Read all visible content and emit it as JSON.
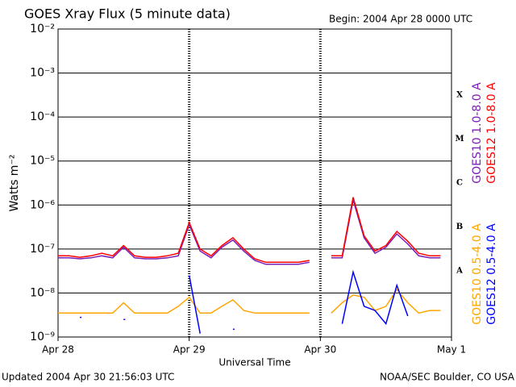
{
  "chart_data": {
    "type": "line",
    "title": "GOES Xray Flux (5 minute data)",
    "subtitle": "Begin:  2004 Apr 28 0000 UTC",
    "y_label": "Watts m⁻²",
    "x_label": "Universal Time",
    "footer_left": "Updated 2004 Apr 30 21:56:03 UTC",
    "footer_right": "NOAA/SEC Boulder, CO USA",
    "log_y": true,
    "grid": true,
    "xlim": [
      0,
      72
    ],
    "xticks": [
      {
        "value": 0,
        "label": "Apr 28"
      },
      {
        "value": 24,
        "label": "Apr 29"
      },
      {
        "value": 48,
        "label": "Apr 30"
      },
      {
        "value": 72,
        "label": "May 1"
      }
    ],
    "ylim": [
      1e-09,
      0.01
    ],
    "yticks": [
      {
        "value": 1e-09,
        "label": "10⁻⁹"
      },
      {
        "value": 1e-08,
        "label": "10⁻⁸"
      },
      {
        "value": 1e-07,
        "label": "10⁻⁷"
      },
      {
        "value": 1e-06,
        "label": "10⁻⁶"
      },
      {
        "value": 1e-05,
        "label": "10⁻⁵"
      },
      {
        "value": 0.0001,
        "label": "10⁻⁴"
      },
      {
        "value": 0.001,
        "label": "10⁻³"
      },
      {
        "value": 0.01,
        "label": "10⁻²"
      }
    ],
    "flare_classes": [
      "A",
      "B",
      "C",
      "M",
      "X"
    ],
    "x": [
      0,
      2,
      4,
      6,
      8,
      10,
      12,
      14,
      16,
      18,
      20,
      22,
      24,
      26,
      28,
      30,
      32,
      34,
      36,
      38,
      40,
      42,
      44,
      46,
      48,
      50,
      52,
      54,
      56,
      58,
      60,
      62,
      64,
      66,
      68,
      70
    ],
    "series": [
      {
        "name": "GOES10 1.0-8.0 A",
        "color": "#7a1fb8",
        "values": [
          6.3e-08,
          6.3e-08,
          6e-08,
          6.3e-08,
          7e-08,
          6.3e-08,
          1.1e-07,
          6.3e-08,
          6e-08,
          6e-08,
          6.3e-08,
          7e-08,
          3.6e-07,
          9e-08,
          6.3e-08,
          1.1e-07,
          1.6e-07,
          9e-08,
          5.5e-08,
          4.5e-08,
          4.5e-08,
          4.5e-08,
          4.5e-08,
          5e-08,
          null,
          6.3e-08,
          6.3e-08,
          1.3e-06,
          1.8e-07,
          8e-08,
          1.1e-07,
          2.2e-07,
          1.3e-07,
          7e-08,
          6.3e-08,
          6.3e-08
        ]
      },
      {
        "name": "GOES12 1.0-8.0 A",
        "color": "#ff0000",
        "values": [
          7e-08,
          7e-08,
          6.5e-08,
          7e-08,
          8e-08,
          7e-08,
          1.2e-07,
          7e-08,
          6.5e-08,
          6.5e-08,
          7e-08,
          8e-08,
          4e-07,
          1e-07,
          7e-08,
          1.2e-07,
          1.8e-07,
          1e-07,
          6e-08,
          5e-08,
          5e-08,
          5e-08,
          5e-08,
          5.5e-08,
          null,
          7e-08,
          7e-08,
          1.5e-06,
          2e-07,
          9e-08,
          1.2e-07,
          2.5e-07,
          1.5e-07,
          8e-08,
          7e-08,
          7e-08
        ]
      },
      {
        "name": "GOES10 0.5-4.0 A",
        "color": "#ffa500",
        "values": [
          3.5e-09,
          3.5e-09,
          3.5e-09,
          3.5e-09,
          3.5e-09,
          3.5e-09,
          6e-09,
          3.5e-09,
          3.5e-09,
          3.5e-09,
          3.5e-09,
          5e-09,
          8e-09,
          3.5e-09,
          3.5e-09,
          5e-09,
          7e-09,
          4e-09,
          3.5e-09,
          3.5e-09,
          3.5e-09,
          3.5e-09,
          3.5e-09,
          3.5e-09,
          null,
          3.5e-09,
          6e-09,
          9e-09,
          8e-09,
          4e-09,
          5e-09,
          1.2e-08,
          6e-09,
          3.5e-09,
          4e-09,
          4e-09
        ]
      },
      {
        "name": "GOES12 0.5-4.0 A",
        "color": "#0000ff",
        "values": [
          null,
          null,
          2.8e-09,
          null,
          null,
          null,
          2.5e-09,
          null,
          null,
          null,
          null,
          null,
          2.5e-08,
          1.2e-09,
          null,
          null,
          1.5e-09,
          null,
          null,
          null,
          null,
          null,
          null,
          null,
          null,
          null,
          2e-09,
          3e-08,
          5e-09,
          4e-09,
          2e-09,
          1.5e-08,
          3e-09,
          null,
          null,
          null
        ]
      }
    ]
  }
}
